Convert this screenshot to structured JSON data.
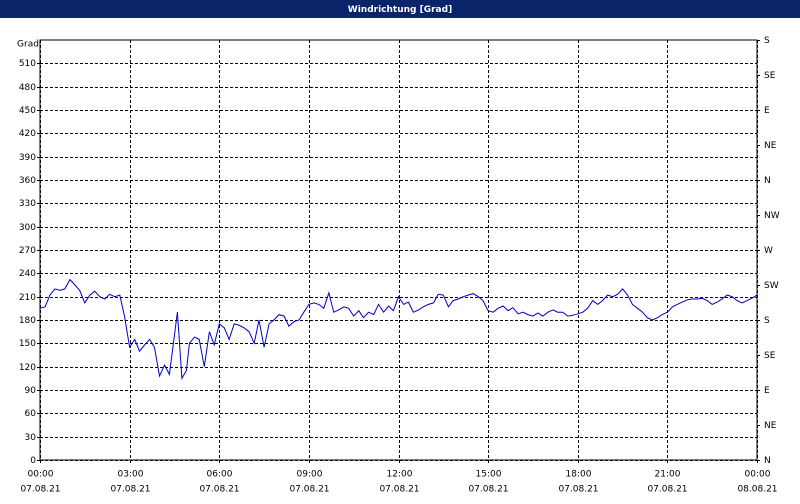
{
  "chart_data": {
    "type": "line",
    "title": "Windrichtung [Grad]",
    "y_label": "Grad",
    "color": "#0000c8",
    "grid": true,
    "xlim": [
      0,
      24
    ],
    "xticks": [
      {
        "value": 0,
        "label": "00:00"
      },
      {
        "value": 3,
        "label": "03:00"
      },
      {
        "value": 6,
        "label": "06:00"
      },
      {
        "value": 9,
        "label": "09:00"
      },
      {
        "value": 12,
        "label": "12:00"
      },
      {
        "value": 15,
        "label": "15:00"
      },
      {
        "value": 18,
        "label": "18:00"
      },
      {
        "value": 21,
        "label": "21:00"
      },
      {
        "value": 24,
        "label": "00:00"
      }
    ],
    "xtick_dates": [
      "07.08.21",
      "07.08.21",
      "07.08.21",
      "07.08.21",
      "07.08.21",
      "07.08.21",
      "07.08.21",
      "07.08.21",
      "08.08.21"
    ],
    "ylim": [
      0,
      540
    ],
    "yticks": [
      0,
      30,
      60,
      90,
      120,
      150,
      180,
      210,
      240,
      270,
      300,
      330,
      360,
      390,
      420,
      450,
      480,
      510
    ],
    "y2lim": [
      0,
      540
    ],
    "y2ticks": [
      {
        "value": 0,
        "label": "N"
      },
      {
        "value": 45,
        "label": "NE"
      },
      {
        "value": 90,
        "label": "E"
      },
      {
        "value": 135,
        "label": "SE"
      },
      {
        "value": 180,
        "label": "S"
      },
      {
        "value": 225,
        "label": "SW"
      },
      {
        "value": 270,
        "label": "W"
      },
      {
        "value": 315,
        "label": "NW"
      },
      {
        "value": 360,
        "label": "N"
      },
      {
        "value": 405,
        "label": "NE"
      },
      {
        "value": 450,
        "label": "E"
      },
      {
        "value": 495,
        "label": "SE"
      },
      {
        "value": 540,
        "label": "S"
      }
    ],
    "x": [
      0,
      0.17,
      0.33,
      0.5,
      0.67,
      0.83,
      1.0,
      1.17,
      1.33,
      1.5,
      1.67,
      1.83,
      2.0,
      2.17,
      2.33,
      2.5,
      2.67,
      2.83,
      3.0,
      3.17,
      3.33,
      3.5,
      3.67,
      3.83,
      4.0,
      4.17,
      4.33,
      4.5,
      4.6,
      4.75,
      4.9,
      5.0,
      5.17,
      5.33,
      5.5,
      5.67,
      5.83,
      6.0,
      6.17,
      6.33,
      6.5,
      6.67,
      6.83,
      7.0,
      7.17,
      7.33,
      7.5,
      7.67,
      7.83,
      8.0,
      8.17,
      8.33,
      8.5,
      8.67,
      8.83,
      9.0,
      9.17,
      9.33,
      9.5,
      9.67,
      9.83,
      10.0,
      10.17,
      10.33,
      10.5,
      10.67,
      10.83,
      11.0,
      11.17,
      11.33,
      11.5,
      11.67,
      11.83,
      12.0,
      12.17,
      12.33,
      12.5,
      12.67,
      12.83,
      13.0,
      13.17,
      13.33,
      13.5,
      13.67,
      13.83,
      14.0,
      14.17,
      14.33,
      14.5,
      14.67,
      14.83,
      15.0,
      15.17,
      15.33,
      15.5,
      15.67,
      15.83,
      16.0,
      16.17,
      16.33,
      16.5,
      16.67,
      16.83,
      17.0,
      17.17,
      17.33,
      17.5,
      17.67,
      17.83,
      18.0,
      18.17,
      18.33,
      18.5,
      18.67,
      18.83,
      19.0,
      19.17,
      19.33,
      19.5,
      19.67,
      19.83,
      20.0,
      20.17,
      20.33,
      20.5,
      20.67,
      20.83,
      21.0,
      21.17,
      21.33,
      21.5,
      21.67,
      21.83,
      22.0,
      22.17,
      22.33,
      22.5,
      22.67,
      22.83,
      23.0,
      23.17,
      23.33,
      23.5,
      23.67,
      23.83,
      24.0
    ],
    "values": [
      195,
      197,
      212,
      220,
      218,
      220,
      232,
      225,
      218,
      202,
      212,
      217,
      210,
      207,
      213,
      210,
      212,
      185,
      145,
      155,
      140,
      148,
      155,
      145,
      108,
      122,
      110,
      160,
      190,
      105,
      115,
      150,
      158,
      155,
      120,
      165,
      148,
      175,
      170,
      155,
      175,
      173,
      170,
      165,
      150,
      180,
      145,
      175,
      180,
      187,
      185,
      172,
      178,
      180,
      190,
      200,
      202,
      200,
      195,
      215,
      190,
      193,
      197,
      195,
      185,
      192,
      183,
      190,
      187,
      200,
      190,
      198,
      192,
      210,
      200,
      203,
      190,
      193,
      197,
      200,
      202,
      213,
      212,
      197,
      205,
      207,
      210,
      212,
      214,
      210,
      205,
      192,
      190,
      195,
      198,
      192,
      196,
      188,
      190,
      187,
      185,
      189,
      185,
      190,
      193,
      190,
      190,
      185,
      186,
      188,
      190,
      195,
      205,
      200,
      205,
      212,
      210,
      213,
      220,
      212,
      200,
      195,
      190,
      183,
      180,
      183,
      187,
      190,
      197,
      200,
      203,
      206,
      207,
      207,
      208,
      205,
      200,
      203,
      207,
      212,
      210,
      205,
      202,
      205,
      208,
      212
    ]
  }
}
